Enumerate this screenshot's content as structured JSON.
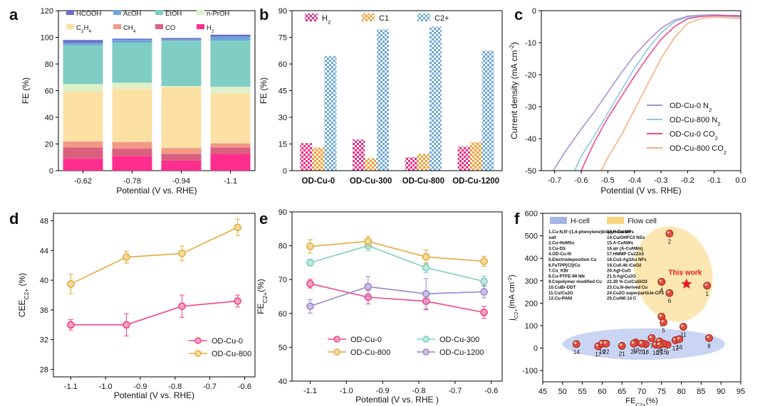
{
  "panel_letters": [
    "a",
    "b",
    "c",
    "d",
    "e",
    "f"
  ],
  "chart_data": [
    {
      "panel": "a",
      "type": "bar",
      "stacked": true,
      "xlabel": "Potential (V vs. RHE)",
      "ylabel": "FE (%)",
      "ylim": [
        0,
        120
      ],
      "yticks": [
        0,
        20,
        40,
        60,
        80,
        100,
        120
      ],
      "categories": [
        "-0.62",
        "-0.78",
        "-0.94",
        "-1.1"
      ],
      "legend_items": [
        "HCOOH",
        "AcOH",
        "EtOH",
        "n-PrOH",
        "C2H4",
        "CH4",
        "CO",
        "H2"
      ],
      "legend_display": [
        {
          "main": "HCOOH",
          "sub": ""
        },
        {
          "main": "AcOH",
          "sub": ""
        },
        {
          "main": "EtOH",
          "sub": ""
        },
        {
          "main": "n-PrOH",
          "sub": ""
        },
        {
          "main": "C",
          "sub": "2",
          "main2": "H",
          "sub2": "4"
        },
        {
          "main": "CH",
          "sub": "4"
        },
        {
          "main": "CO",
          "sub": ""
        },
        {
          "main": "H",
          "sub": "2"
        }
      ],
      "colors": {
        "H2": "#ff2d8e",
        "CO": "#d9607e",
        "CH4": "#f19a86",
        "C2H4": "#fde0a4",
        "n-PrOH": "#ddf0c9",
        "EtOH": "#7fcdc3",
        "AcOH": "#6ea6dd",
        "HCOOH": "#6b6fc7"
      },
      "series": [
        {
          "name": "H2",
          "values": [
            9,
            11,
            7.5,
            12.5
          ]
        },
        {
          "name": "CO",
          "values": [
            8.5,
            5.5,
            5,
            5
          ]
        },
        {
          "name": "CH4",
          "values": [
            4.5,
            5,
            4.5,
            3
          ]
        },
        {
          "name": "C2H4",
          "values": [
            37.5,
            40,
            45.5,
            37.5
          ]
        },
        {
          "name": "n-PrOH",
          "values": [
            5.5,
            4.5,
            1,
            5
          ]
        },
        {
          "name": "EtOH",
          "values": [
            29,
            30,
            34,
            34.5
          ]
        },
        {
          "name": "AcOH",
          "values": [
            2,
            2,
            1,
            3
          ]
        },
        {
          "name": "HCOOH",
          "values": [
            2,
            1,
            1,
            1.5
          ]
        }
      ]
    },
    {
      "panel": "b",
      "type": "bar",
      "grouped": true,
      "ylabel": "FE (%)",
      "ylim": [
        0,
        90
      ],
      "yticks": [
        0,
        15,
        30,
        45,
        60,
        75,
        90
      ],
      "categories": [
        "OD-Cu-0",
        "OD-Cu-300",
        "OD-Cu-800",
        "OD-Cu-1200"
      ],
      "legend_items": [
        "H2",
        "C1",
        "C2+"
      ],
      "legend_display": [
        {
          "main": "H",
          "sub": "2"
        },
        {
          "main": "C1",
          "sub": ""
        },
        {
          "main": "C2+",
          "sub": ""
        }
      ],
      "colors": {
        "H2": "#f0267e",
        "C1": "#f59a2c",
        "C2+": "#6aa7d9"
      },
      "series": [
        {
          "name": "H2",
          "values": [
            15.5,
            17.5,
            7.5,
            13.5
          ]
        },
        {
          "name": "C1",
          "values": [
            13,
            7,
            9.5,
            16
          ]
        },
        {
          "name": "C2+",
          "values": [
            64.5,
            79.5,
            81,
            67.5
          ]
        }
      ]
    },
    {
      "panel": "c",
      "type": "line",
      "xlabel": "Potential (V vs. RHE)",
      "ylabel": "Current density (mA cm⁻²)",
      "ylabel_display": {
        "main": "Current density (mA cm",
        "sup": "-2",
        "tail": ")"
      },
      "xlim": [
        -0.75,
        0.0
      ],
      "ylim": [
        -50,
        0
      ],
      "xticks": [
        -0.7,
        -0.6,
        -0.5,
        -0.4,
        -0.3,
        -0.2,
        -0.1,
        0.0
      ],
      "xtick_labels": [
        "-0.7",
        "-0.6",
        "-0.5",
        "-0.4",
        "-0.3",
        "-0.2",
        "-0.1",
        "0.0"
      ],
      "yticks": [
        -50,
        -40,
        -30,
        -20,
        -10,
        0
      ],
      "series": [
        {
          "name": "OD-Cu-0 N2",
          "label_main": "OD-Cu-0 N",
          "label_sub": "2",
          "color": "#a98fd0",
          "x": [
            -0.705,
            -0.66,
            -0.6,
            -0.55,
            -0.5,
            -0.45,
            -0.4,
            -0.35,
            -0.3,
            -0.25,
            -0.2,
            -0.15,
            -0.1,
            -0.05,
            0.0
          ],
          "y": [
            -50,
            -44,
            -37,
            -31.5,
            -25.5,
            -19.5,
            -14,
            -9.5,
            -5.5,
            -3,
            -1.7,
            -1.4,
            -1.3,
            -1.5,
            -1.5
          ]
        },
        {
          "name": "OD-Cu-800 N2",
          "label_main": "OD-Cu-800 N",
          "label_sub": "2",
          "color": "#8dc6e8",
          "x": [
            -0.625,
            -0.6,
            -0.55,
            -0.5,
            -0.45,
            -0.4,
            -0.35,
            -0.3,
            -0.25,
            -0.2,
            -0.15,
            -0.1,
            -0.05,
            0.0
          ],
          "y": [
            -50,
            -45.5,
            -39,
            -32,
            -25,
            -18,
            -12,
            -7,
            -3.5,
            -2,
            -1.6,
            -1.5,
            -1.8,
            -2
          ]
        },
        {
          "name": "OD-Cu-0 CO2",
          "label_main": "OD-Cu-0 CO",
          "label_sub": "2",
          "color": "#f04a8c",
          "x": [
            -0.6,
            -0.57,
            -0.55,
            -0.5,
            -0.45,
            -0.4,
            -0.35,
            -0.3,
            -0.25,
            -0.2,
            -0.15,
            -0.1,
            -0.05,
            0.0
          ],
          "y": [
            -50,
            -44.5,
            -41,
            -33.5,
            -27,
            -20.5,
            -14.5,
            -9,
            -5,
            -2.5,
            -1.8,
            -1.6,
            -1.6,
            -1.7
          ]
        },
        {
          "name": "OD-Cu-800 CO2",
          "label_main": "OD-Cu-800 CO",
          "label_sub": "2",
          "color": "#f7b184",
          "x": [
            -0.525,
            -0.5,
            -0.45,
            -0.4,
            -0.35,
            -0.3,
            -0.25,
            -0.2,
            -0.15,
            -0.1,
            -0.05,
            0.0
          ],
          "y": [
            -50,
            -46,
            -39,
            -31,
            -23,
            -15,
            -8.5,
            -4,
            -2.5,
            -2,
            -2.2,
            -2.5
          ]
        }
      ]
    },
    {
      "panel": "d",
      "type": "line",
      "xlabel": "Potential (V vs. RHE)",
      "ylabel": "CEE C2+ (%)",
      "ylabel_display": {
        "main": "CEE",
        "sub": "C2+",
        "tail": " (%)"
      },
      "xlim": [
        -1.15,
        -0.57
      ],
      "ylim": [
        27,
        49
      ],
      "xticks": [
        -1.1,
        -1.0,
        -0.9,
        -0.8,
        -0.7,
        -0.6
      ],
      "xtick_labels": [
        "-1.1",
        "-1.0",
        "-0.9",
        "-0.8",
        "-0.7",
        "-0.6"
      ],
      "yticks": [
        28,
        32,
        36,
        40,
        44,
        48
      ],
      "series": [
        {
          "name": "OD-Cu-0",
          "color": "#f0468a",
          "marker_fill": "#f6a0c2",
          "x": [
            -1.1,
            -0.94,
            -0.78,
            -0.62
          ],
          "y": [
            34.0,
            34.0,
            36.5,
            37.2
          ],
          "err": [
            0.7,
            1.5,
            1.5,
            0.8
          ]
        },
        {
          "name": "OD-Cu-800",
          "color": "#e3ab3d",
          "marker_fill": "#f6dc9a",
          "x": [
            -1.1,
            -0.94,
            -0.78,
            -0.62
          ],
          "y": [
            39.5,
            43.1,
            43.6,
            47.1
          ],
          "err": [
            1.3,
            0.8,
            1.0,
            1.1
          ]
        }
      ]
    },
    {
      "panel": "e",
      "type": "line",
      "xlabel": "Potential (V vs. RHE )",
      "ylabel": "FE C2+ (%)",
      "ylabel_display": {
        "main": "FE",
        "sub": "C2+",
        "tail": "(%)"
      },
      "xlim": [
        -1.15,
        -0.57
      ],
      "ylim": [
        40,
        90
      ],
      "xticks": [
        -1.1,
        -1.0,
        -0.9,
        -0.8,
        -0.7,
        -0.6
      ],
      "xtick_labels": [
        "-1.1",
        "-1.0",
        "-0.9",
        "-0.8",
        "-0.7",
        "-0.6"
      ],
      "yticks": [
        40,
        50,
        60,
        70,
        80,
        90
      ],
      "series": [
        {
          "name": "OD-Cu-0",
          "color": "#f0468a",
          "marker_fill": "#f6a0c2",
          "x": [
            -1.1,
            -0.94,
            -0.78,
            -0.62
          ],
          "y": [
            68.8,
            64.8,
            63.6,
            60.3
          ],
          "err": [
            1.3,
            2.0,
            2.5,
            1.8
          ]
        },
        {
          "name": "OD-Cu-300",
          "color": "#7fcfc4",
          "marker_fill": "#bfe9e2",
          "x": [
            -1.1,
            -0.94,
            -0.78,
            -0.62
          ],
          "y": [
            75.0,
            80.0,
            73.5,
            69.5
          ],
          "err": [
            1.0,
            1.5,
            1.5,
            1.5
          ]
        },
        {
          "name": "OD-Cu-800",
          "color": "#e3ab3d",
          "marker_fill": "#f6dc9a",
          "x": [
            -1.1,
            -0.94,
            -0.78,
            -0.62
          ],
          "y": [
            79.8,
            81.3,
            76.7,
            75.4
          ],
          "err": [
            2.0,
            1.5,
            2.0,
            1.5
          ]
        },
        {
          "name": "OD-Cu-1200",
          "color": "#9b86cc",
          "marker_fill": "#cbbfe6",
          "x": [
            -1.1,
            -0.94,
            -0.78,
            -0.62
          ],
          "y": [
            62.1,
            67.9,
            65.8,
            66.4
          ],
          "err": [
            2.0,
            3.0,
            4.5,
            1.8
          ]
        }
      ]
    },
    {
      "panel": "f",
      "type": "scatter",
      "xlabel": "FE C2+ (%)",
      "xlabel_display": {
        "main": "FE",
        "sub": "C2+",
        "tail": "(%)"
      },
      "ylabel": "j C2+ (mA cm-2)",
      "ylabel_display": {
        "main": "j",
        "sub": "C2+",
        "tail": "(mA cm",
        "sup": "-2",
        "end": ")"
      },
      "xlim": [
        45,
        95
      ],
      "ylim": [
        -150,
        600
      ],
      "xticks": [
        45,
        50,
        55,
        60,
        65,
        70,
        75,
        80,
        85,
        90,
        95
      ],
      "yticks": [
        -100,
        0,
        100,
        200,
        300,
        400,
        500,
        600
      ],
      "legend": [
        "H-cell",
        "Flow cell"
      ],
      "legend_colors": {
        "H-cell": "#8ea1e0",
        "Flow cell": "#f6d57d"
      },
      "this_work_label": "This work",
      "this_work": {
        "x": 81.3,
        "y": 285
      },
      "points": [
        {
          "id": "1",
          "x": 86.5,
          "y": 278
        },
        {
          "id": "2",
          "x": 77,
          "y": 510
        },
        {
          "id": "3",
          "x": 75,
          "y": 140
        },
        {
          "id": "4",
          "x": 75,
          "y": 295
        },
        {
          "id": "5",
          "x": 75.5,
          "y": 115
        },
        {
          "id": "6",
          "x": 77,
          "y": 245
        },
        {
          "id": "7",
          "x": 72.5,
          "y": 45
        },
        {
          "id": "8",
          "x": 87,
          "y": 45
        },
        {
          "id": "9",
          "x": 76.5,
          "y": 15
        },
        {
          "id": "10",
          "x": 73.5,
          "y": 15
        },
        {
          "id": "11",
          "x": 80.5,
          "y": 95
        },
        {
          "id": "12",
          "x": 78.5,
          "y": 35
        },
        {
          "id": "13",
          "x": 68.5,
          "y": 25
        },
        {
          "id": "14",
          "x": 53.5,
          "y": 18
        },
        {
          "id": "15",
          "x": 75.5,
          "y": 20
        },
        {
          "id": "16",
          "x": 79.5,
          "y": 40
        },
        {
          "id": "17",
          "x": 59,
          "y": 8
        },
        {
          "id": "18",
          "x": 71,
          "y": 18
        },
        {
          "id": "19",
          "x": 60,
          "y": 20
        },
        {
          "id": "20",
          "x": 70,
          "y": 20
        },
        {
          "id": "21",
          "x": 65,
          "y": 10
        },
        {
          "id": "22",
          "x": 61,
          "y": 20
        },
        {
          "id": "23",
          "x": 68,
          "y": 20
        },
        {
          "id": "24",
          "x": 74.5,
          "y": 30
        },
        {
          "id": "25",
          "x": 74.5,
          "y": 15
        }
      ],
      "references": [
        "1.Cu-N,N'-(1,4-phenylene)bispyridinium salt",
        "2.Cu-HoMSs",
        "3.Cu-DS",
        "4.OD-Cu-III",
        "5.Electrodeposition Cu",
        "6.FeTPP[Cl]/Cu",
        "7.Cu_KBr",
        "8.Cu-PTFE-99 NN",
        "9.Copolymer modified Cu",
        "10.CuBr-DDT",
        "11.Cu/Cu2O",
        "12.Cu-PANI",
        "13.H-Cu MPs",
        "14.Cu/OHFC/I NSs",
        "15.A-CuNWs",
        "16.air (A-CuNWs)",
        "17.HMMP Cu2Zn3",
        "18.Cu3-Ag3Au NFs",
        "19.Cu0.46 /CeO2",
        "20.AgI-CuO",
        "21.5-Ag/Cu2O",
        "22.20 % Cu/CuSiO3",
        "23.Cu,N-derived Cu",
        "24.Cu2O superparticle-CP3",
        "25.Cu/N0.14 C"
      ]
    }
  ]
}
